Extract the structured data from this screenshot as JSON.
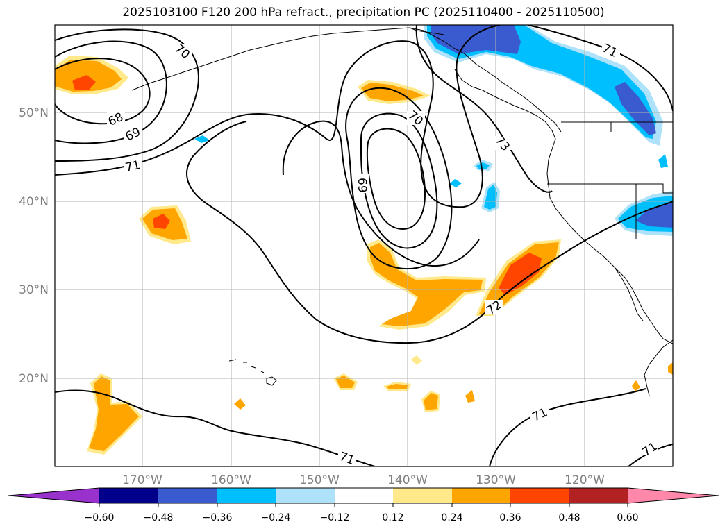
{
  "title": "2025103100 F120 200 hPa refract., precipitation PC (2025110400 - 2025110500)",
  "axes": {
    "lat_labels": [
      "50°N",
      "40°N",
      "30°N",
      "20°N"
    ],
    "lon_labels": [
      "170°W",
      "160°W",
      "150°W",
      "140°W",
      "130°W",
      "120°W"
    ]
  },
  "contour_labels": [
    "70",
    "68",
    "69",
    "71",
    "70",
    "69",
    "73",
    "71",
    "72",
    "71",
    "71",
    "71"
  ],
  "colorbar": {
    "ticks": [
      "−0.60",
      "−0.48",
      "−0.36",
      "−0.24",
      "−0.12",
      "0.12",
      "0.24",
      "0.36",
      "0.48",
      "0.60"
    ],
    "colors": [
      "#9932cc",
      "#00008b",
      "#3a5bd0",
      "#00bfff",
      "#aee2fa",
      "#ffffff",
      "#ffe98a",
      "#ffa500",
      "#ff4500",
      "#b22222",
      "#ff88aa"
    ]
  },
  "palette": {
    "neg_strong": "#3a5bd0",
    "neg_mid": "#00bfff",
    "neg_weak": "#aee2fa",
    "pos_weak": "#ffe98a",
    "pos_mid": "#ffa500",
    "pos_strong": "#ff4500"
  }
}
